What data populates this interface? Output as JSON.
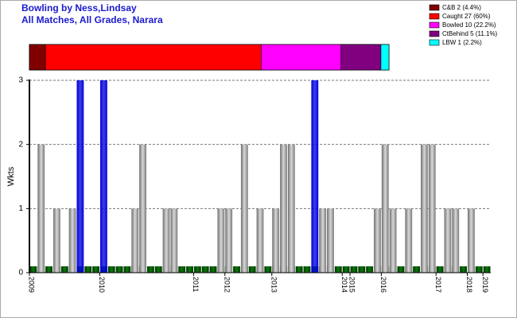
{
  "chart_data": [
    {
      "type": "bar",
      "title": "Bowling by Ness,Lindsay",
      "subtitle": "All Matches, All Grades, Narara",
      "y_label": "Wkts",
      "categories": [
        "2009",
        null,
        null,
        null,
        null,
        null,
        null,
        null,
        null,
        "2010",
        null,
        null,
        null,
        null,
        null,
        null,
        null,
        null,
        null,
        null,
        null,
        "2011",
        null,
        null,
        null,
        "2012",
        null,
        null,
        null,
        null,
        null,
        "2013",
        null,
        null,
        null,
        null,
        null,
        null,
        null,
        null,
        "2014",
        "2015",
        null,
        null,
        null,
        "2016",
        null,
        null,
        null,
        null,
        null,
        null,
        "2017",
        null,
        null,
        null,
        "2018",
        null,
        "2019"
      ],
      "values": [
        0,
        2,
        0,
        1,
        0,
        1,
        3,
        0,
        0,
        3,
        0,
        0,
        0,
        1,
        2,
        0,
        0,
        1,
        1,
        0,
        0,
        0,
        0,
        0,
        1,
        1,
        0,
        2,
        0,
        1,
        0,
        1,
        2,
        2,
        0,
        0,
        3,
        1,
        1,
        0,
        0,
        0,
        0,
        0,
        1,
        2,
        1,
        0,
        1,
        0,
        2,
        2,
        0,
        1,
        1,
        0,
        1,
        0,
        0
      ],
      "colors": [
        "#999",
        "#999",
        "#999",
        "#999",
        "#999",
        "#999",
        "#0000dd",
        "#999",
        "#999",
        "#0000dd",
        "#999",
        "#999",
        "#999",
        "#999",
        "#999",
        "#999",
        "#999",
        "#999",
        "#999",
        "#999",
        "#999",
        "#999",
        "#999",
        "#999",
        "#999",
        "#999",
        "#999",
        "#999",
        "#999",
        "#999",
        "#999",
        "#999",
        "#999",
        "#999",
        "#999",
        "#999",
        "#0000dd",
        "#999",
        "#999",
        "#999",
        "#999",
        "#999",
        "#999",
        "#999",
        "#999",
        "#999",
        "#999",
        "#999",
        "#999",
        "#999",
        "#999",
        "#999",
        "#999",
        "#999",
        "#999",
        "#999",
        "#999",
        "#999",
        "#999"
      ],
      "ylim": [
        0,
        3
      ],
      "yticks": [
        0,
        1,
        2,
        3
      ],
      "grid": true
    },
    {
      "type": "stacked_hbar",
      "series": [
        {
          "name": "C&B",
          "label": "C&B 2 (4.4%)",
          "color": "#800000",
          "values": [
            2
          ]
        },
        {
          "name": "Caught",
          "label": "Caught 27 (60%)",
          "color": "#ff0000",
          "values": [
            27
          ]
        },
        {
          "name": "Bowled",
          "label": "Bowled 10 (22.2%)",
          "color": "#ff00ff",
          "values": [
            10
          ]
        },
        {
          "name": "CtBehind",
          "label": "CtBehind 5 (11.1%)",
          "color": "#800080",
          "values": [
            5
          ]
        },
        {
          "name": "LBW",
          "label": "LBW 1 (2.2%)",
          "color": "#00ffff",
          "values": [
            1
          ]
        }
      ]
    }
  ]
}
